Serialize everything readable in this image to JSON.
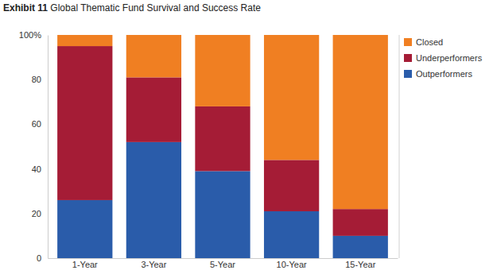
{
  "chart_data": {
    "type": "bar",
    "title": "Exhibit 11 Global Thematic Fund Survival and Success Rate",
    "categories": [
      "1-Year",
      "3-Year",
      "5-Year",
      "10-Year",
      "15-Year"
    ],
    "series": [
      {
        "name": "Outperformers",
        "color": "#2a5caa",
        "values": [
          26,
          52,
          39,
          21,
          10
        ]
      },
      {
        "name": "Underperformers",
        "color": "#a51c36",
        "values": [
          69,
          29,
          29,
          23,
          12
        ]
      },
      {
        "name": "Closed",
        "color": "#f07f22",
        "values": [
          5,
          19,
          32,
          56,
          78
        ]
      }
    ],
    "stacked": true,
    "ylim": [
      0,
      100
    ],
    "yticks": [
      0,
      20,
      40,
      60,
      80,
      {
        "value": 100,
        "label": "100%"
      }
    ],
    "grid": false,
    "legend": "right"
  }
}
